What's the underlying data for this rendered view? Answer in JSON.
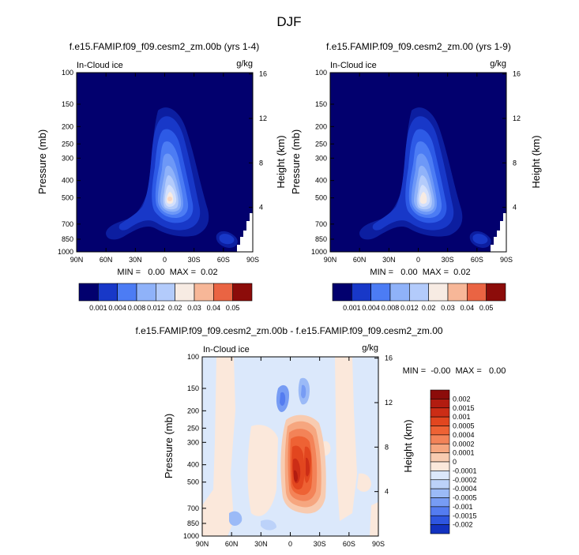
{
  "title": "DJF",
  "chart_data": [
    {
      "type": "heatmap",
      "title": "f.e15.FAMIP.f09_f09.cesm2_zm.00b (yrs 1-4)",
      "left_label": "In-Cloud ice",
      "right_label": "g/kg",
      "ylabel": "Pressure (mb)",
      "ylabel_right": "Height (km)",
      "xticks": [
        "90N",
        "60N",
        "30N",
        "0",
        "30S",
        "60S",
        "90S"
      ],
      "yticks": [
        "100",
        "150",
        "200",
        "250",
        "300",
        "400",
        "500",
        "700",
        "850",
        "1000"
      ],
      "height_ticks": [
        "16",
        "12",
        "8",
        "4"
      ],
      "stats": "MIN =   0.00  MAX =  0.02",
      "levels": [
        "0.001",
        "0.004",
        "0.008",
        "0.012",
        "0.02",
        "0.03",
        "0.04",
        "0.05"
      ],
      "colors": [
        "#02006e",
        "#0c1ea0",
        "#1838c8",
        "#2d5ae6",
        "#4c7cf4",
        "#6d98f7",
        "#8fb2f9",
        "#b3cbfb",
        "#d3e0fc",
        "#f7ebe3",
        "#f8d7c4",
        "#f7b798",
        "#f3906c",
        "#ea6443",
        "#d8401f",
        "#b62213",
        "#8c0c0a"
      ]
    },
    {
      "type": "heatmap",
      "title": "f.e15.FAMIP.f09_f09.cesm2_zm.00 (yrs 1-9)",
      "left_label": "In-Cloud ice",
      "right_label": "g/kg",
      "ylabel": "Pressure (mb)",
      "ylabel_right": "Height (km)",
      "xticks": [
        "90N",
        "60N",
        "30N",
        "0",
        "30S",
        "60S",
        "90S"
      ],
      "yticks": [
        "100",
        "150",
        "200",
        "250",
        "300",
        "400",
        "500",
        "700",
        "850",
        "1000"
      ],
      "height_ticks": [
        "16",
        "12",
        "8",
        "4"
      ],
      "stats": "MIN =   0.00  MAX =  0.02",
      "levels": [
        "0.001",
        "0.004",
        "0.008",
        "0.012",
        "0.02",
        "0.03",
        "0.04",
        "0.05"
      ]
    },
    {
      "type": "heatmap",
      "title": "f.e15.FAMIP.f09_f09.cesm2_zm.00b - f.e15.FAMIP.f09_f09.cesm2_zm.00",
      "left_label": "In-Cloud ice",
      "right_label": "g/kg",
      "ylabel": "Pressure (mb)",
      "ylabel_right": "Height (km)",
      "xticks": [
        "90N",
        "60N",
        "30N",
        "0",
        "30S",
        "60S",
        "90S"
      ],
      "yticks": [
        "100",
        "150",
        "200",
        "250",
        "300",
        "400",
        "500",
        "700",
        "850",
        "1000"
      ],
      "height_ticks": [
        "16",
        "12",
        "8",
        "4"
      ],
      "stats": "MIN =  -0.00  MAX =   0.00",
      "levels": [
        "0.002",
        "0.0015",
        "0.001",
        "0.0005",
        "0.0004",
        "0.0002",
        "0.0001",
        "0",
        "-0.0001",
        "-0.0002",
        "-0.0004",
        "-0.0005",
        "-0.001",
        "-0.0015",
        "-0.002"
      ],
      "colors": [
        "#8c0c0a",
        "#b21c10",
        "#cc2d16",
        "#e2461f",
        "#ee6234",
        "#f38358",
        "#f6a67f",
        "#f8cbb0",
        "#fbe8db",
        "#dbe8fb",
        "#bcd2f9",
        "#9bbaf7",
        "#779cf4",
        "#547cf0",
        "#2e56e0",
        "#1232c0",
        "#02006e"
      ]
    }
  ]
}
